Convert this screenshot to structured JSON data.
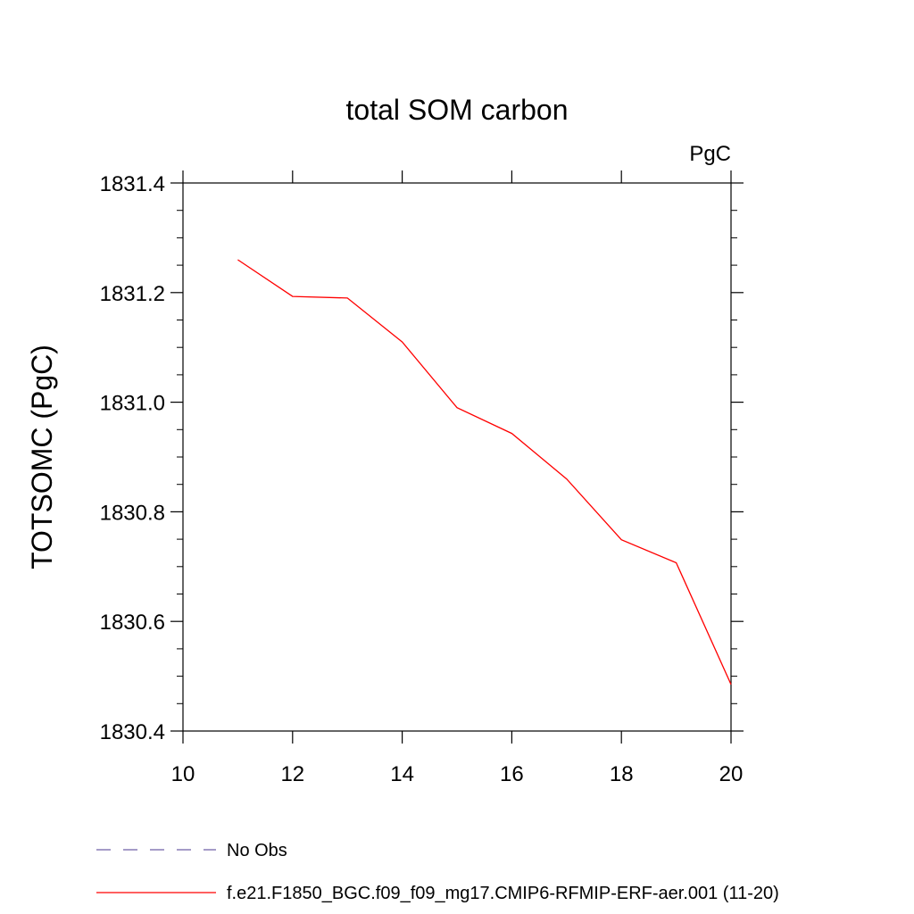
{
  "chart_data": {
    "type": "line",
    "title": "total SOM carbon",
    "units_label": "PgC",
    "xlabel": "",
    "ylabel": "TOTSOMC  (PgC)",
    "xlim": [
      10,
      20
    ],
    "ylim": [
      1830.4,
      1831.4
    ],
    "x_ticks": [
      "10",
      "12",
      "14",
      "16",
      "18",
      "20"
    ],
    "y_ticks": [
      "1830.4",
      "1830.6",
      "1830.8",
      "1831.0",
      "1831.2",
      "1831.4"
    ],
    "grid": false,
    "series": [
      {
        "name": "f.e21.F1850_BGC.f09_f09_mg17.CMIP6-RFMIP-ERF-aer.001 (11-20)",
        "color": "#ff0000",
        "x": [
          11,
          12,
          13,
          14,
          15,
          16,
          17,
          18,
          19,
          20
        ],
        "y": [
          1831.26,
          1831.193,
          1831.19,
          1831.11,
          1830.99,
          1830.943,
          1830.86,
          1830.749,
          1830.707,
          1830.485
        ]
      }
    ],
    "legend": [
      {
        "label": "No Obs",
        "color": "#6f5fa8",
        "style": "dashed"
      },
      {
        "label": "f.e21.F1850_BGC.f09_f09_mg17.CMIP6-RFMIP-ERF-aer.001 (11-20)",
        "color": "#ff0000",
        "style": "solid"
      }
    ],
    "legend_position": "bottom"
  }
}
